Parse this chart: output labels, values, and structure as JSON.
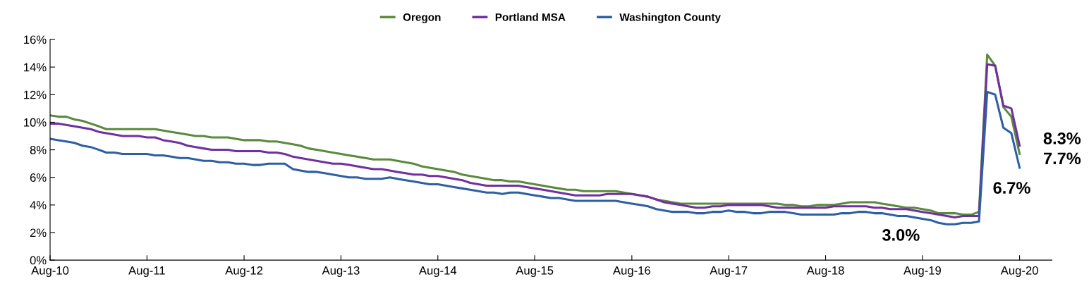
{
  "chart_data": {
    "type": "line",
    "x": [
      "2010-08",
      "2010-09",
      "2010-10",
      "2010-11",
      "2010-12",
      "2011-01",
      "2011-02",
      "2011-03",
      "2011-04",
      "2011-05",
      "2011-06",
      "2011-07",
      "2011-08",
      "2011-09",
      "2011-10",
      "2011-11",
      "2011-12",
      "2012-01",
      "2012-02",
      "2012-03",
      "2012-04",
      "2012-05",
      "2012-06",
      "2012-07",
      "2012-08",
      "2012-09",
      "2012-10",
      "2012-11",
      "2012-12",
      "2013-01",
      "2013-02",
      "2013-03",
      "2013-04",
      "2013-05",
      "2013-06",
      "2013-07",
      "2013-08",
      "2013-09",
      "2013-10",
      "2013-11",
      "2013-12",
      "2014-01",
      "2014-02",
      "2014-03",
      "2014-04",
      "2014-05",
      "2014-06",
      "2014-07",
      "2014-08",
      "2014-09",
      "2014-10",
      "2014-11",
      "2014-12",
      "2015-01",
      "2015-02",
      "2015-03",
      "2015-04",
      "2015-05",
      "2015-06",
      "2015-07",
      "2015-08",
      "2015-09",
      "2015-10",
      "2015-11",
      "2015-12",
      "2016-01",
      "2016-02",
      "2016-03",
      "2016-04",
      "2016-05",
      "2016-06",
      "2016-07",
      "2016-08",
      "2016-09",
      "2016-10",
      "2016-11",
      "2016-12",
      "2017-01",
      "2017-02",
      "2017-03",
      "2017-04",
      "2017-05",
      "2017-06",
      "2017-07",
      "2017-08",
      "2017-09",
      "2017-10",
      "2017-11",
      "2017-12",
      "2018-01",
      "2018-02",
      "2018-03",
      "2018-04",
      "2018-05",
      "2018-06",
      "2018-07",
      "2018-08",
      "2018-09",
      "2018-10",
      "2018-11",
      "2018-12",
      "2019-01",
      "2019-02",
      "2019-03",
      "2019-04",
      "2019-05",
      "2019-06",
      "2019-07",
      "2019-08",
      "2019-09",
      "2019-10",
      "2019-11",
      "2019-12",
      "2020-01",
      "2020-02",
      "2020-03",
      "2020-04",
      "2020-05",
      "2020-06",
      "2020-07",
      "2020-08"
    ],
    "series": [
      {
        "name": "Oregon",
        "color": "#5a8a3c",
        "values": [
          10.5,
          10.4,
          10.4,
          10.2,
          10.1,
          9.9,
          9.7,
          9.5,
          9.5,
          9.5,
          9.5,
          9.5,
          9.5,
          9.5,
          9.4,
          9.3,
          9.2,
          9.1,
          9.0,
          9.0,
          8.9,
          8.9,
          8.9,
          8.8,
          8.7,
          8.7,
          8.7,
          8.6,
          8.6,
          8.5,
          8.4,
          8.3,
          8.1,
          8.0,
          7.9,
          7.8,
          7.7,
          7.6,
          7.5,
          7.4,
          7.3,
          7.3,
          7.3,
          7.2,
          7.1,
          7.0,
          6.8,
          6.7,
          6.6,
          6.5,
          6.4,
          6.2,
          6.1,
          6.0,
          5.9,
          5.8,
          5.8,
          5.7,
          5.7,
          5.6,
          5.5,
          5.4,
          5.3,
          5.2,
          5.1,
          5.1,
          5.0,
          5.0,
          5.0,
          5.0,
          5.0,
          4.9,
          4.8,
          4.7,
          4.6,
          4.4,
          4.3,
          4.2,
          4.1,
          4.1,
          4.1,
          4.1,
          4.1,
          4.1,
          4.1,
          4.1,
          4.1,
          4.1,
          4.1,
          4.1,
          4.1,
          4.0,
          4.0,
          3.9,
          3.9,
          4.0,
          4.0,
          4.0,
          4.1,
          4.2,
          4.2,
          4.2,
          4.2,
          4.1,
          4.0,
          3.9,
          3.8,
          3.8,
          3.7,
          3.6,
          3.4,
          3.4,
          3.4,
          3.3,
          3.3,
          3.5,
          14.9,
          14.1,
          11.1,
          10.4,
          7.7
        ]
      },
      {
        "name": "Portland MSA",
        "color": "#7030a0",
        "values": [
          9.9,
          9.9,
          9.8,
          9.7,
          9.6,
          9.5,
          9.3,
          9.2,
          9.1,
          9.0,
          9.0,
          9.0,
          8.9,
          8.9,
          8.7,
          8.6,
          8.5,
          8.3,
          8.2,
          8.1,
          8.0,
          8.0,
          8.0,
          7.9,
          7.9,
          7.9,
          7.9,
          7.8,
          7.8,
          7.7,
          7.5,
          7.4,
          7.3,
          7.2,
          7.1,
          7.0,
          7.0,
          6.9,
          6.8,
          6.7,
          6.6,
          6.6,
          6.5,
          6.4,
          6.3,
          6.2,
          6.2,
          6.1,
          6.1,
          6.0,
          5.9,
          5.8,
          5.6,
          5.5,
          5.4,
          5.4,
          5.4,
          5.4,
          5.4,
          5.3,
          5.2,
          5.1,
          5.0,
          4.9,
          4.8,
          4.7,
          4.7,
          4.7,
          4.7,
          4.8,
          4.8,
          4.8,
          4.8,
          4.7,
          4.6,
          4.4,
          4.2,
          4.1,
          4.0,
          3.9,
          3.8,
          3.8,
          3.9,
          3.9,
          4.0,
          4.0,
          4.0,
          4.0,
          4.0,
          3.9,
          3.8,
          3.8,
          3.8,
          3.8,
          3.8,
          3.8,
          3.8,
          3.9,
          3.9,
          3.9,
          3.9,
          3.9,
          3.8,
          3.8,
          3.7,
          3.7,
          3.7,
          3.6,
          3.5,
          3.4,
          3.3,
          3.2,
          3.1,
          3.2,
          3.2,
          3.2,
          14.2,
          14.1,
          11.2,
          11.0,
          8.3
        ]
      },
      {
        "name": "Washington County",
        "color": "#2e5fa3",
        "values": [
          8.8,
          8.7,
          8.6,
          8.5,
          8.3,
          8.2,
          8.0,
          7.8,
          7.8,
          7.7,
          7.7,
          7.7,
          7.7,
          7.6,
          7.6,
          7.5,
          7.4,
          7.4,
          7.3,
          7.2,
          7.2,
          7.1,
          7.1,
          7.0,
          7.0,
          6.9,
          6.9,
          7.0,
          7.0,
          7.0,
          6.6,
          6.5,
          6.4,
          6.4,
          6.3,
          6.2,
          6.1,
          6.0,
          6.0,
          5.9,
          5.9,
          5.9,
          6.0,
          5.9,
          5.8,
          5.7,
          5.6,
          5.5,
          5.5,
          5.4,
          5.3,
          5.2,
          5.1,
          5.0,
          4.9,
          4.9,
          4.8,
          4.9,
          4.9,
          4.8,
          4.7,
          4.6,
          4.5,
          4.5,
          4.4,
          4.3,
          4.3,
          4.3,
          4.3,
          4.3,
          4.3,
          4.2,
          4.1,
          4.0,
          3.9,
          3.7,
          3.6,
          3.5,
          3.5,
          3.5,
          3.4,
          3.4,
          3.5,
          3.5,
          3.6,
          3.5,
          3.5,
          3.4,
          3.4,
          3.5,
          3.5,
          3.5,
          3.4,
          3.3,
          3.3,
          3.3,
          3.3,
          3.3,
          3.4,
          3.4,
          3.5,
          3.5,
          3.4,
          3.4,
          3.3,
          3.2,
          3.2,
          3.1,
          3.0,
          2.9,
          2.7,
          2.6,
          2.6,
          2.7,
          2.7,
          2.8,
          12.2,
          12.0,
          9.6,
          9.2,
          6.7
        ]
      }
    ],
    "xlim": [
      "2010-08",
      "2020-12"
    ],
    "xticks": [
      {
        "value": "2010-08",
        "label": "Aug-10"
      },
      {
        "value": "2011-08",
        "label": "Aug-11"
      },
      {
        "value": "2012-08",
        "label": "Aug-12"
      },
      {
        "value": "2013-08",
        "label": "Aug-13"
      },
      {
        "value": "2014-08",
        "label": "Aug-14"
      },
      {
        "value": "2015-08",
        "label": "Aug-15"
      },
      {
        "value": "2016-08",
        "label": "Aug-16"
      },
      {
        "value": "2017-08",
        "label": "Aug-17"
      },
      {
        "value": "2018-08",
        "label": "Aug-18"
      },
      {
        "value": "2019-08",
        "label": "Aug-19"
      },
      {
        "value": "2020-08",
        "label": "Aug-20"
      }
    ],
    "ylim": [
      0,
      16
    ],
    "yticks": [
      {
        "value": 0,
        "label": "0%"
      },
      {
        "value": 2,
        "label": "2%"
      },
      {
        "value": 4,
        "label": "4%"
      },
      {
        "value": 6,
        "label": "6%"
      },
      {
        "value": 8,
        "label": "8%"
      },
      {
        "value": 10,
        "label": "10%"
      },
      {
        "value": 12,
        "label": "12%"
      },
      {
        "value": 14,
        "label": "14%"
      },
      {
        "value": 16,
        "label": "16%"
      }
    ],
    "annotations": [
      {
        "text": "8.3%",
        "x": "2020-08",
        "y": 8.3
      },
      {
        "text": "7.7%",
        "x": "2020-08",
        "y": 7.7
      },
      {
        "text": "6.7%",
        "x": "2020-08",
        "y": 6.7
      },
      {
        "text": "3.0%",
        "x": "2019-08",
        "y": 3.0
      }
    ],
    "grid": false,
    "legend": "top",
    "marker": "none",
    "line_style": "solid"
  }
}
